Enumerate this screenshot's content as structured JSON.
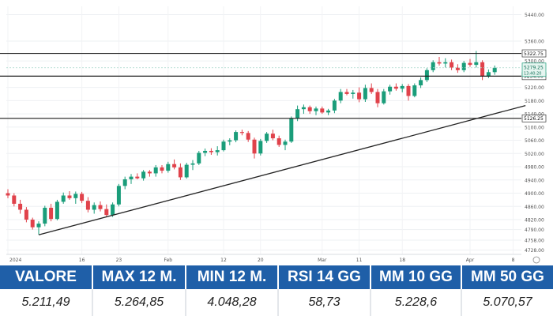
{
  "chart_data": {
    "type": "candlestick",
    "x_tick_labels": [
      "2024",
      "16",
      "23",
      "Feb",
      "12",
      "20",
      "Mar",
      "11",
      "18",
      "Apr",
      "8"
    ],
    "y_tick_labels": [
      "5440.00",
      "5360.00",
      "5300.00",
      "5220.00",
      "5180.00",
      "5140.00",
      "5100.00",
      "5060.00",
      "5020.00",
      "4980.00",
      "4940.00",
      "4900.00",
      "4860.00",
      "4820.00",
      "4790.00",
      "4758.00",
      "4728.00"
    ],
    "y_ticks": [
      5440,
      5360,
      5300,
      5220,
      5180,
      5140,
      5100,
      5060,
      5020,
      4980,
      4940,
      4900,
      4860,
      4820,
      4790,
      4758,
      4728
    ],
    "ylim": [
      4715,
      5465
    ],
    "horizontal_levels": [
      {
        "value": 5322.75,
        "label": "5322.75"
      },
      {
        "value": 5254.0,
        "label": "5254.00"
      },
      {
        "value": 5126.25,
        "label": "5126.25"
      }
    ],
    "last_price": {
      "value": 5279.25,
      "label": "5279.25",
      "sub_label": "13:40:20"
    },
    "trendline": [
      {
        "i": 5,
        "v": 4774
      },
      {
        "i": 84,
        "v": 5165
      }
    ],
    "candles": [
      {
        "o": 4900,
        "h": 4912,
        "l": 4885,
        "c": 4893
      },
      {
        "o": 4893,
        "h": 4900,
        "l": 4860,
        "c": 4868
      },
      {
        "o": 4868,
        "h": 4880,
        "l": 4838,
        "c": 4850
      },
      {
        "o": 4850,
        "h": 4858,
        "l": 4812,
        "c": 4820
      },
      {
        "o": 4820,
        "h": 4826,
        "l": 4790,
        "c": 4797
      },
      {
        "o": 4797,
        "h": 4815,
        "l": 4775,
        "c": 4808
      },
      {
        "o": 4808,
        "h": 4862,
        "l": 4800,
        "c": 4856
      },
      {
        "o": 4856,
        "h": 4868,
        "l": 4815,
        "c": 4822
      },
      {
        "o": 4822,
        "h": 4880,
        "l": 4818,
        "c": 4874
      },
      {
        "o": 4874,
        "h": 4902,
        "l": 4868,
        "c": 4893
      },
      {
        "o": 4893,
        "h": 4906,
        "l": 4880,
        "c": 4885
      },
      {
        "o": 4885,
        "h": 4905,
        "l": 4868,
        "c": 4898
      },
      {
        "o": 4898,
        "h": 4904,
        "l": 4870,
        "c": 4877
      },
      {
        "o": 4877,
        "h": 4888,
        "l": 4842,
        "c": 4850
      },
      {
        "o": 4850,
        "h": 4872,
        "l": 4838,
        "c": 4864
      },
      {
        "o": 4864,
        "h": 4875,
        "l": 4845,
        "c": 4852
      },
      {
        "o": 4852,
        "h": 4866,
        "l": 4828,
        "c": 4834
      },
      {
        "o": 4834,
        "h": 4872,
        "l": 4828,
        "c": 4866
      },
      {
        "o": 4866,
        "h": 4928,
        "l": 4860,
        "c": 4922
      },
      {
        "o": 4922,
        "h": 4950,
        "l": 4912,
        "c": 4942
      },
      {
        "o": 4942,
        "h": 4958,
        "l": 4928,
        "c": 4950
      },
      {
        "o": 4950,
        "h": 4960,
        "l": 4942,
        "c": 4945
      },
      {
        "o": 4945,
        "h": 4970,
        "l": 4938,
        "c": 4965
      },
      {
        "o": 4965,
        "h": 4970,
        "l": 4950,
        "c": 4960
      },
      {
        "o": 4960,
        "h": 4985,
        "l": 4950,
        "c": 4978
      },
      {
        "o": 4978,
        "h": 4985,
        "l": 4960,
        "c": 4968
      },
      {
        "o": 4968,
        "h": 4995,
        "l": 4962,
        "c": 4988
      },
      {
        "o": 4988,
        "h": 5002,
        "l": 4972,
        "c": 4978
      },
      {
        "o": 4978,
        "h": 4990,
        "l": 4940,
        "c": 4948
      },
      {
        "o": 4948,
        "h": 4992,
        "l": 4944,
        "c": 4986
      },
      {
        "o": 4986,
        "h": 5000,
        "l": 4970,
        "c": 4990
      },
      {
        "o": 4990,
        "h": 5028,
        "l": 4985,
        "c": 5022
      },
      {
        "o": 5022,
        "h": 5035,
        "l": 5012,
        "c": 5028
      },
      {
        "o": 5028,
        "h": 5036,
        "l": 5016,
        "c": 5024
      },
      {
        "o": 5024,
        "h": 5042,
        "l": 5014,
        "c": 5030
      },
      {
        "o": 5030,
        "h": 5062,
        "l": 5026,
        "c": 5056
      },
      {
        "o": 5056,
        "h": 5066,
        "l": 5045,
        "c": 5060
      },
      {
        "o": 5060,
        "h": 5090,
        "l": 5054,
        "c": 5085
      },
      {
        "o": 5085,
        "h": 5092,
        "l": 5075,
        "c": 5082
      },
      {
        "o": 5082,
        "h": 5088,
        "l": 5055,
        "c": 5062
      },
      {
        "o": 5062,
        "h": 5068,
        "l": 5005,
        "c": 5020
      },
      {
        "o": 5020,
        "h": 5064,
        "l": 5014,
        "c": 5058
      },
      {
        "o": 5058,
        "h": 5085,
        "l": 5052,
        "c": 5080
      },
      {
        "o": 5080,
        "h": 5092,
        "l": 5060,
        "c": 5066
      },
      {
        "o": 5066,
        "h": 5074,
        "l": 5040,
        "c": 5046
      },
      {
        "o": 5046,
        "h": 5062,
        "l": 5030,
        "c": 5056
      },
      {
        "o": 5056,
        "h": 5132,
        "l": 5052,
        "c": 5126
      },
      {
        "o": 5126,
        "h": 5165,
        "l": 5118,
        "c": 5154
      },
      {
        "o": 5154,
        "h": 5168,
        "l": 5140,
        "c": 5160
      },
      {
        "o": 5160,
        "h": 5165,
        "l": 5140,
        "c": 5148
      },
      {
        "o": 5148,
        "h": 5162,
        "l": 5136,
        "c": 5156
      },
      {
        "o": 5156,
        "h": 5162,
        "l": 5140,
        "c": 5144
      },
      {
        "o": 5144,
        "h": 5155,
        "l": 5136,
        "c": 5150
      },
      {
        "o": 5150,
        "h": 5185,
        "l": 5142,
        "c": 5180
      },
      {
        "o": 5180,
        "h": 5215,
        "l": 5172,
        "c": 5206
      },
      {
        "o": 5206,
        "h": 5215,
        "l": 5196,
        "c": 5200
      },
      {
        "o": 5200,
        "h": 5212,
        "l": 5186,
        "c": 5204
      },
      {
        "o": 5204,
        "h": 5220,
        "l": 5175,
        "c": 5184
      },
      {
        "o": 5184,
        "h": 5228,
        "l": 5176,
        "c": 5218
      },
      {
        "o": 5218,
        "h": 5232,
        "l": 5200,
        "c": 5206
      },
      {
        "o": 5206,
        "h": 5215,
        "l": 5160,
        "c": 5172
      },
      {
        "o": 5172,
        "h": 5215,
        "l": 5168,
        "c": 5208
      },
      {
        "o": 5208,
        "h": 5228,
        "l": 5198,
        "c": 5222
      },
      {
        "o": 5222,
        "h": 5232,
        "l": 5210,
        "c": 5216
      },
      {
        "o": 5216,
        "h": 5230,
        "l": 5205,
        "c": 5224
      },
      {
        "o": 5224,
        "h": 5230,
        "l": 5180,
        "c": 5194
      },
      {
        "o": 5194,
        "h": 5232,
        "l": 5190,
        "c": 5226
      },
      {
        "o": 5226,
        "h": 5250,
        "l": 5218,
        "c": 5242
      },
      {
        "o": 5242,
        "h": 5278,
        "l": 5236,
        "c": 5272
      },
      {
        "o": 5272,
        "h": 5302,
        "l": 5266,
        "c": 5296
      },
      {
        "o": 5296,
        "h": 5312,
        "l": 5286,
        "c": 5292
      },
      {
        "o": 5292,
        "h": 5308,
        "l": 5280,
        "c": 5296
      },
      {
        "o": 5296,
        "h": 5304,
        "l": 5272,
        "c": 5280
      },
      {
        "o": 5280,
        "h": 5290,
        "l": 5264,
        "c": 5272
      },
      {
        "o": 5272,
        "h": 5300,
        "l": 5266,
        "c": 5294
      },
      {
        "o": 5294,
        "h": 5306,
        "l": 5282,
        "c": 5288
      },
      {
        "o": 5288,
        "h": 5330,
        "l": 5280,
        "c": 5296
      },
      {
        "o": 5296,
        "h": 5302,
        "l": 5242,
        "c": 5254
      },
      {
        "o": 5254,
        "h": 5274,
        "l": 5248,
        "c": 5266
      },
      {
        "o": 5266,
        "h": 5286,
        "l": 5258,
        "c": 5279.25
      }
    ],
    "up_color": "#1a9d7a",
    "down_color": "#e0424b",
    "grid": true
  },
  "stats": {
    "headers": [
      "VALORE",
      "MAX 12 M.",
      "MIN 12 M.",
      "RSI 14 GG",
      "MM 10 GG",
      "MM 50 GG"
    ],
    "values": [
      "5.211,49",
      "5.264,85",
      "4.048,28",
      "58,73",
      "5.228,6",
      "5.070,57"
    ],
    "header_color": "#1f5fa8"
  }
}
